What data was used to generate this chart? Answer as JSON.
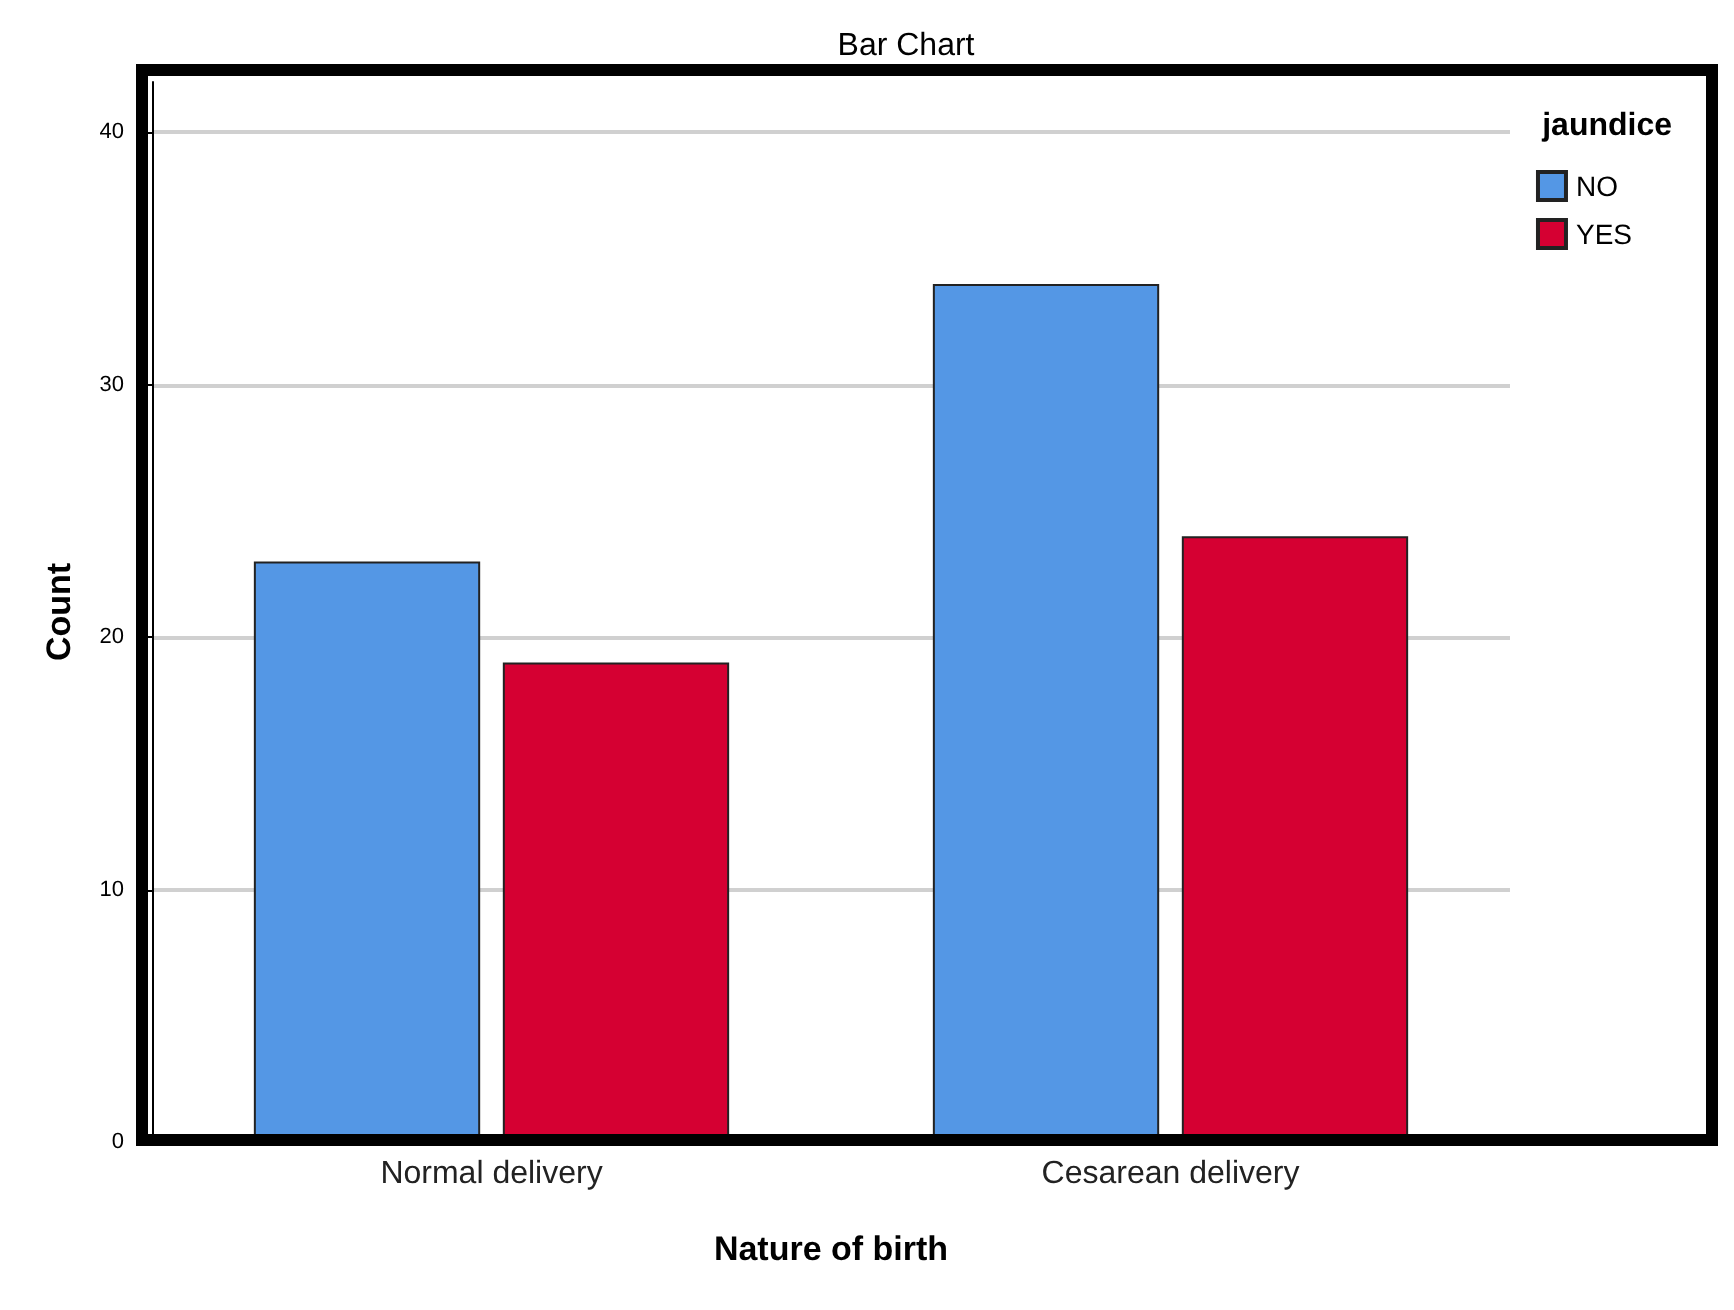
{
  "chart_data": {
    "type": "bar",
    "title": "Bar Chart",
    "xlabel": "Nature of birth",
    "ylabel": "Count",
    "legend_title": "jaundice",
    "categories": [
      "Normal delivery",
      "Cesarean delivery"
    ],
    "series": [
      {
        "name": "NO",
        "color": "#5497e5",
        "values": [
          23,
          34
        ]
      },
      {
        "name": "YES",
        "color": "#d50032",
        "values": [
          19,
          24
        ]
      }
    ],
    "ylim": [
      0,
      42
    ],
    "yticks": [
      0,
      10,
      20,
      30,
      40
    ],
    "grid": "y",
    "legend": "top right"
  }
}
